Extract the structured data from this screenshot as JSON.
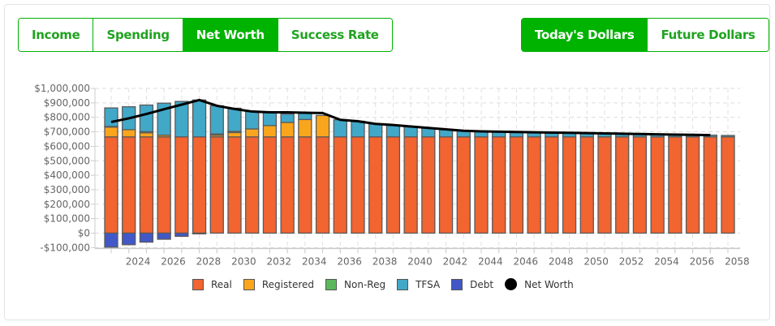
{
  "tabs": {
    "metric": [
      {
        "label": "Income",
        "active": false
      },
      {
        "label": "Spending",
        "active": false
      },
      {
        "label": "Net Worth",
        "active": true
      },
      {
        "label": "Success Rate",
        "active": false
      }
    ],
    "dollars": [
      {
        "label": "Today's Dollars",
        "active": true
      },
      {
        "label": "Future Dollars",
        "active": false
      }
    ]
  },
  "colors": {
    "accent": "#00b300",
    "Real": "#f26430",
    "Registered": "#f9a61d",
    "Non-Reg": "#5cb85c",
    "TFSA": "#41a8c8",
    "Debt": "#4258c8",
    "Net Worth": "#000000"
  },
  "chart_data": {
    "type": "bar",
    "stacked": true,
    "title": "",
    "xlabel": "",
    "ylabel": "",
    "ylim": [
      -100000,
      1000000
    ],
    "yticks": [
      -100000,
      0,
      100000,
      200000,
      300000,
      400000,
      500000,
      600000,
      700000,
      800000,
      900000,
      1000000
    ],
    "ytick_labels": [
      "-$100,000",
      "$0",
      "$100,000",
      "$200,000",
      "$300,000",
      "$400,000",
      "$500,000",
      "$600,000",
      "$700,000",
      "$800,000",
      "$900,000",
      "$1,000,000"
    ],
    "xtick_labels": [
      "2024",
      "2026",
      "2028",
      "2030",
      "2032",
      "2034",
      "2036",
      "2038",
      "2040",
      "2042",
      "2044",
      "2046",
      "2048",
      "2050",
      "2052",
      "2054",
      "2056",
      "2058"
    ],
    "grid": true,
    "legend_position": "bottom",
    "categories": [
      2023,
      2024,
      2025,
      2026,
      2027,
      2028,
      2029,
      2030,
      2031,
      2032,
      2033,
      2034,
      2035,
      2036,
      2037,
      2038,
      2039,
      2040,
      2041,
      2042,
      2043,
      2044,
      2045,
      2046,
      2047,
      2048,
      2049,
      2050,
      2051,
      2052,
      2053,
      2054,
      2055,
      2056,
      2057,
      2058
    ],
    "series": [
      {
        "name": "Real",
        "values": [
          665000,
          665000,
          665000,
          665000,
          665000,
          665000,
          665000,
          665000,
          665000,
          665000,
          665000,
          665000,
          665000,
          665000,
          665000,
          665000,
          665000,
          665000,
          665000,
          665000,
          665000,
          665000,
          665000,
          665000,
          665000,
          665000,
          665000,
          665000,
          665000,
          665000,
          665000,
          665000,
          665000,
          665000,
          665000,
          665000
        ]
      },
      {
        "name": "Registered",
        "values": [
          68000,
          50000,
          28000,
          12000,
          0,
          0,
          12000,
          30000,
          55000,
          78000,
          100000,
          120000,
          148000,
          0,
          0,
          0,
          0,
          0,
          0,
          0,
          0,
          0,
          0,
          0,
          0,
          0,
          0,
          0,
          0,
          0,
          0,
          0,
          0,
          0,
          0,
          0
        ]
      },
      {
        "name": "Non-Reg",
        "values": [
          4000,
          0,
          8000,
          0,
          0,
          0,
          8000,
          8000,
          0,
          0,
          0,
          0,
          0,
          0,
          0,
          0,
          0,
          0,
          0,
          0,
          0,
          0,
          0,
          0,
          0,
          0,
          0,
          0,
          0,
          0,
          0,
          0,
          0,
          0,
          0,
          0
        ]
      },
      {
        "name": "TFSA",
        "values": [
          128000,
          158000,
          184000,
          221000,
          245000,
          255000,
          195000,
          160000,
          120000,
          92000,
          58000,
          42000,
          0,
          118000,
          108000,
          90000,
          82000,
          72000,
          62000,
          52000,
          42000,
          38000,
          36000,
          34000,
          32000,
          30000,
          28000,
          26000,
          24000,
          22000,
          20000,
          18000,
          16000,
          14000,
          12000,
          10000
        ]
      },
      {
        "name": "Debt",
        "values": [
          -97000,
          -80000,
          -62000,
          -42000,
          -22000,
          -5000,
          0,
          0,
          0,
          0,
          0,
          0,
          0,
          0,
          0,
          0,
          0,
          0,
          0,
          0,
          0,
          0,
          0,
          0,
          0,
          0,
          0,
          0,
          0,
          0,
          0,
          0,
          0,
          0,
          0,
          0
        ]
      }
    ],
    "line": {
      "name": "Net Worth",
      "values": [
        768000,
        793000,
        823000,
        856000,
        888000,
        920000,
        880000,
        858000,
        840000,
        835000,
        835000,
        832000,
        830000,
        783000,
        773000,
        755000,
        747000,
        737000,
        727000,
        717000,
        707000,
        703000,
        701000,
        699000,
        697000,
        695000,
        693000,
        691000,
        689000,
        687000,
        685000,
        683000,
        681000,
        679000,
        677000,
        null
      ]
    }
  },
  "legend": [
    "Real",
    "Registered",
    "Non-Reg",
    "TFSA",
    "Debt",
    "Net Worth"
  ]
}
